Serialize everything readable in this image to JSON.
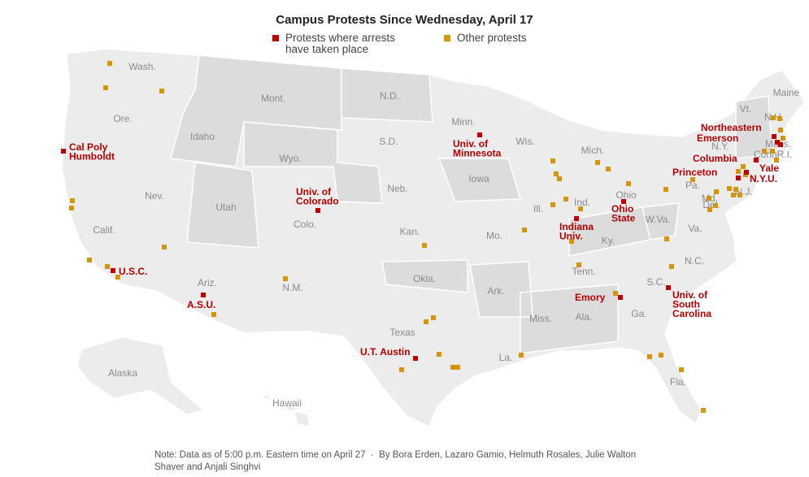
{
  "header": {
    "title": "Campus Protests Since Wednesday, April 17"
  },
  "legend": {
    "arrests": "Protests where arrests have taken place",
    "other": "Other protests"
  },
  "states": [
    "Wash.",
    "Ore.",
    "Idaho",
    "Mont.",
    "N.D.",
    "Minn.",
    "Wis.",
    "Mich.",
    "S.D.",
    "Wyo.",
    "Iowa",
    "Nev.",
    "Utah",
    "Colo.",
    "Neb.",
    "Ill.",
    "Ind.",
    "Ohio",
    "Pa.",
    "N.Y.",
    "Vt.",
    "N.H.",
    "Maine",
    "Mass.",
    "Conn.",
    "R.I.",
    "N.J.",
    "Del.",
    "Md.",
    "W.Va.",
    "Va.",
    "Ky.",
    "Calif.",
    "Kan.",
    "Mo.",
    "Tenn.",
    "N.C.",
    "S.C.",
    "Ariz.",
    "N.M.",
    "Okla.",
    "Ark.",
    "Miss.",
    "Ala.",
    "Ga.",
    "Texas",
    "La.",
    "Fla.",
    "Alaska",
    "Hawaii"
  ],
  "campuses": [
    [
      "Cal Poly",
      "Humboldt"
    ],
    [
      "Univ. of",
      "Minnesota"
    ],
    [
      "Northeastern"
    ],
    [
      "Emerson"
    ],
    [
      "Columbia"
    ],
    [
      "Yale"
    ],
    [
      "Princeton"
    ],
    [
      "N.Y.U."
    ],
    [
      "Univ. of",
      "Colorado"
    ],
    [
      "Indiana",
      "Univ."
    ],
    [
      "Ohio",
      "State"
    ],
    [
      "U.S.C."
    ],
    [
      "A.S.U."
    ],
    [
      "Emory"
    ],
    [
      "Univ. of",
      "South",
      "Carolina"
    ],
    [
      "U.T. Austin"
    ]
  ],
  "note": {
    "text": "Note: Data as of 5:00 p.m. Eastern time on April 27",
    "credit": "By Bora Erden, Lazaro Gamio, Helmuth Rosales, Julie Walton Shaver and Anjali Singhvi"
  }
}
